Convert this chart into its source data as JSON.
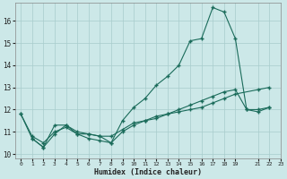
{
  "xlabel": "Humidex (Indice chaleur)",
  "bg_color": "#cce8e8",
  "line_color": "#1a6b5a",
  "grid_color": "#a8cccc",
  "ylim": [
    9.8,
    16.8
  ],
  "xlim": [
    -0.5,
    22.5
  ],
  "yticks": [
    10,
    11,
    12,
    13,
    14,
    15,
    16
  ],
  "xtick_positions": [
    0,
    1,
    2,
    3,
    4,
    5,
    6,
    7,
    8,
    9,
    10,
    11,
    12,
    13,
    14,
    15,
    16,
    17,
    18,
    19,
    21,
    22,
    23
  ],
  "xtick_labels": [
    "0",
    "1",
    "2",
    "3",
    "4",
    "5",
    "6",
    "7",
    "8",
    "9",
    "10",
    "11",
    "12",
    "13",
    "14",
    "15",
    "16",
    "17",
    "18",
    "19",
    "21",
    "22",
    "23"
  ],
  "line1_x": [
    0,
    1,
    2,
    3,
    4,
    5,
    6,
    7,
    8,
    9,
    10,
    11,
    12,
    13,
    14,
    15,
    16,
    17,
    18,
    19,
    20,
    21,
    22
  ],
  "line1_y": [
    11.8,
    10.7,
    10.3,
    11.3,
    11.3,
    10.9,
    10.9,
    10.8,
    10.5,
    11.5,
    12.1,
    12.5,
    13.1,
    13.5,
    14.0,
    15.1,
    15.2,
    16.6,
    16.4,
    15.2,
    12.0,
    11.9,
    12.1
  ],
  "line2_x": [
    0,
    1,
    2,
    3,
    4,
    5,
    6,
    7,
    8,
    9,
    10,
    11,
    12,
    13,
    14,
    15,
    16,
    17,
    18,
    19,
    21,
    22
  ],
  "line2_y": [
    11.8,
    10.8,
    10.5,
    11.0,
    11.2,
    10.9,
    10.7,
    10.6,
    10.5,
    11.0,
    11.3,
    11.5,
    11.6,
    11.8,
    11.9,
    12.0,
    12.1,
    12.3,
    12.5,
    12.7,
    12.9,
    13.0
  ],
  "line3_x": [
    1,
    2,
    3,
    4,
    5,
    6,
    7,
    8,
    9,
    10,
    11,
    12,
    13,
    14,
    15,
    16,
    17,
    18,
    19,
    20,
    21,
    22
  ],
  "line3_y": [
    10.7,
    10.3,
    10.9,
    11.3,
    11.0,
    10.9,
    10.8,
    10.8,
    11.1,
    11.4,
    11.5,
    11.7,
    11.8,
    12.0,
    12.2,
    12.4,
    12.6,
    12.8,
    12.9,
    12.0,
    12.0,
    12.1
  ]
}
